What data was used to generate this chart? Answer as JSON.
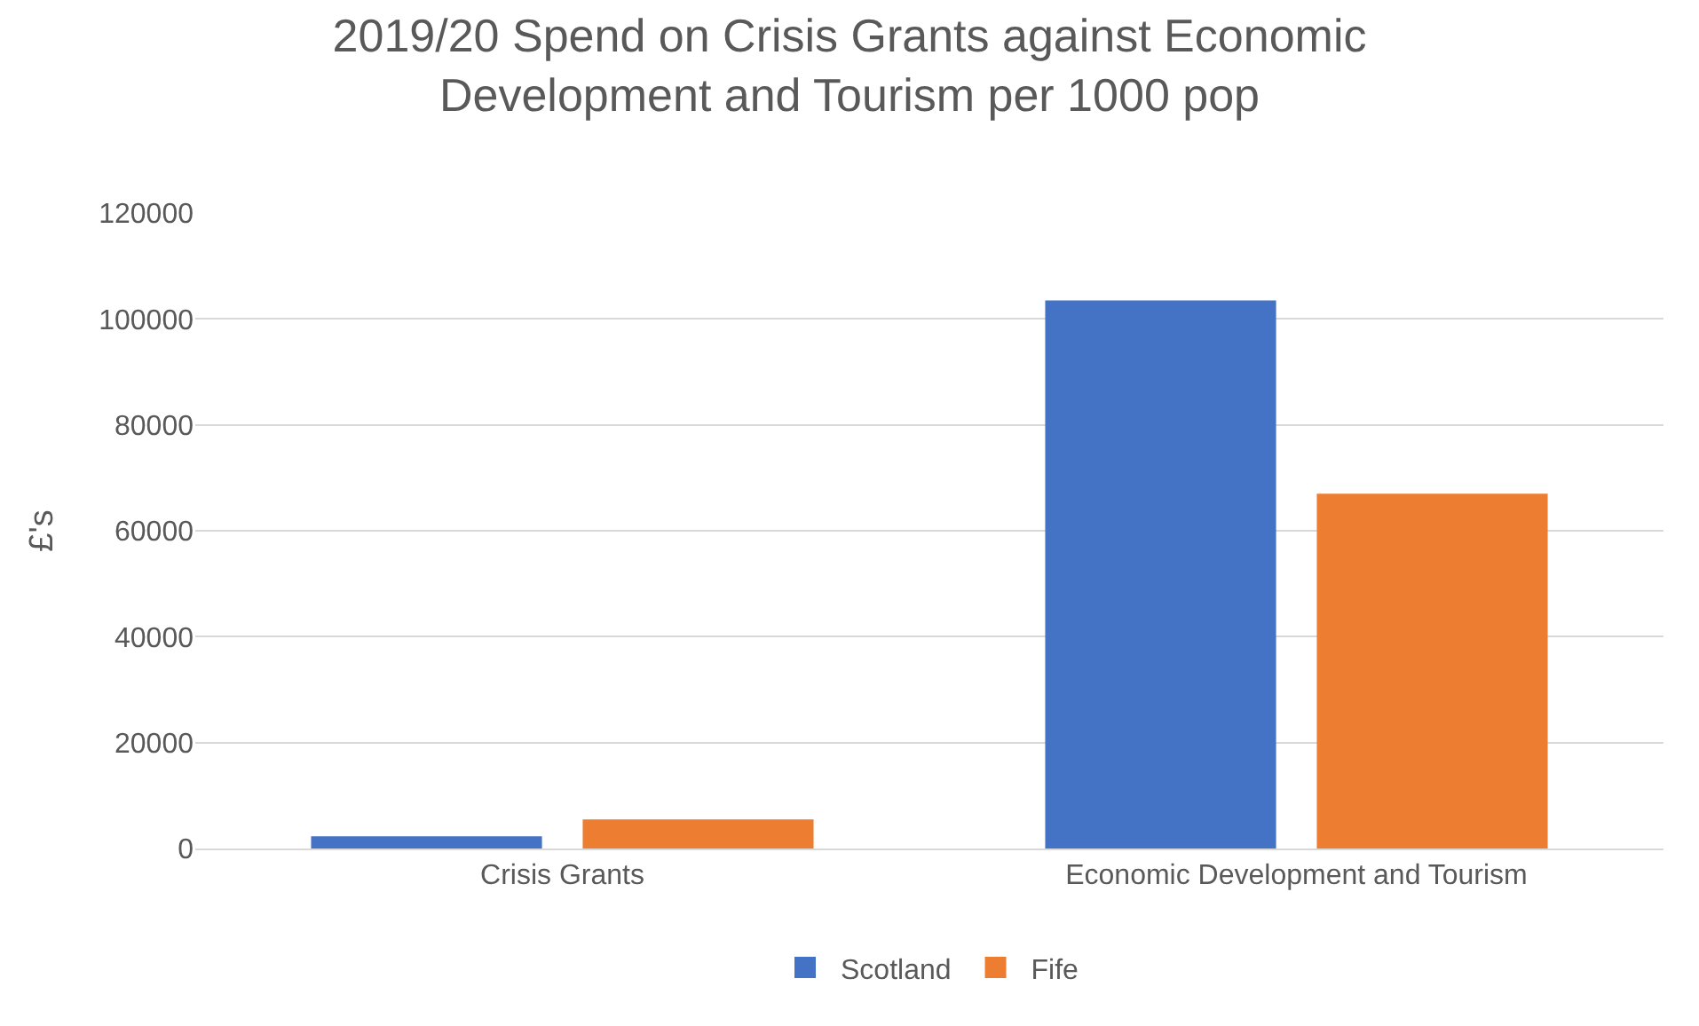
{
  "chart_data": {
    "type": "bar",
    "title": "2019/20 Spend on Crisis Grants against Economic Development and Tourism per 1000 pop",
    "ylabel": "£'s",
    "categories": [
      "Crisis Grants",
      "Economic Development and Tourism"
    ],
    "series": [
      {
        "name": "Scotland",
        "color": "#4472c4",
        "values": [
          2300,
          103500
        ]
      },
      {
        "name": "Fife",
        "color": "#ed7d31",
        "values": [
          5500,
          67000
        ]
      }
    ],
    "ylim": [
      0,
      120000
    ],
    "yticks": [
      0,
      20000,
      40000,
      60000,
      80000,
      100000,
      120000
    ],
    "grid": "y",
    "legend": "bottom"
  }
}
